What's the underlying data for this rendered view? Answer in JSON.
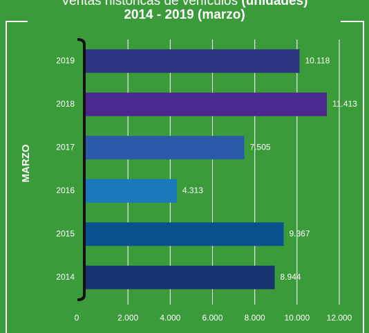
{
  "chart_data": {
    "type": "bar",
    "orientation": "horizontal",
    "title": "Ventas históricas de vehículos",
    "title_emphasis": "(unidades)",
    "subtitle": "2014 - 2019 (marzo)",
    "y_label": "MARZO",
    "categories": [
      "2019",
      "2018",
      "2017",
      "2016",
      "2015",
      "2014"
    ],
    "values": [
      10118,
      11413,
      7505,
      4313,
      9367,
      8944
    ],
    "value_labels": [
      "10.118",
      "11.413",
      "7.505",
      "4.313",
      "9.367",
      "8.944"
    ],
    "colors": [
      "#2e3580",
      "#4a2a8c",
      "#2b5aa8",
      "#1a78bb",
      "#0b4f8c",
      "#18346e"
    ],
    "xlim": [
      0,
      12000
    ],
    "xticks": [
      0,
      {
        "value": 2000,
        "label": "2.000"
      },
      {
        "value": 4000,
        "label": "4.000"
      },
      {
        "value": 6000,
        "label": "6.000"
      },
      {
        "value": 8000,
        "label": "8.000"
      },
      {
        "value": 10000,
        "label": "10.000"
      },
      {
        "value": 12000,
        "label": "12.000"
      }
    ],
    "grid": true
  }
}
